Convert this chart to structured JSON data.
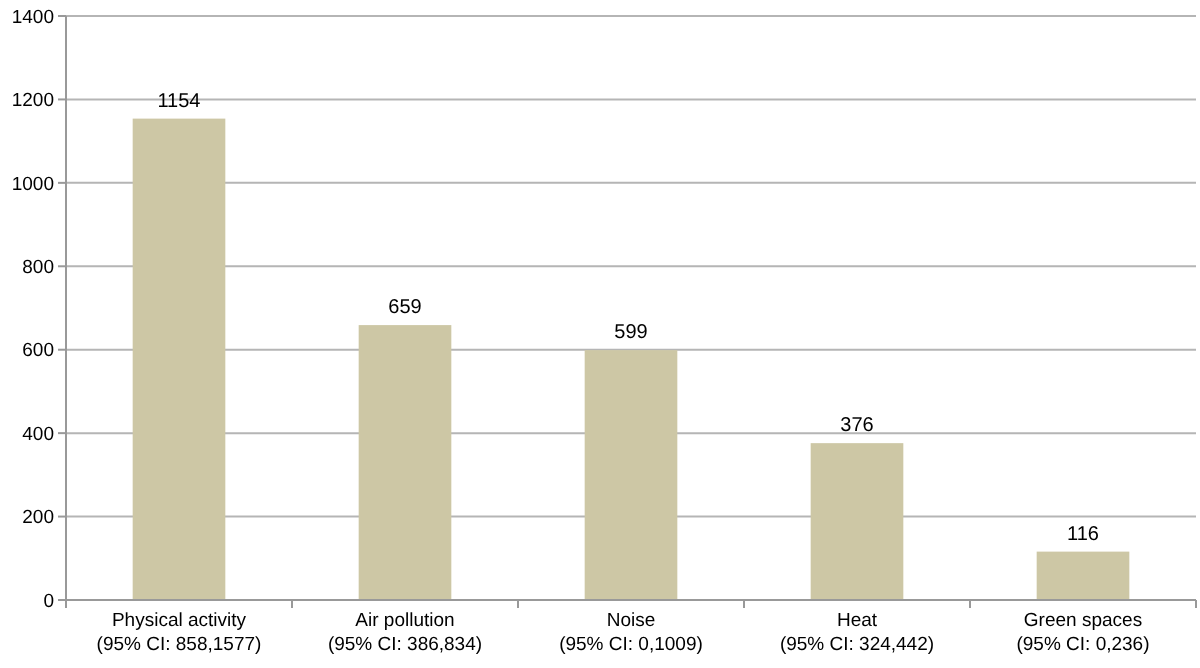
{
  "chart_data": {
    "type": "bar",
    "categories": [
      "Physical activity\n(95% CI: 858,1577)",
      "Air pollution\n(95% CI: 386,834)",
      "Noise\n(95% CI: 0,1009)",
      "Heat\n(95% CI: 324,442)",
      "Green spaces\n(95% CI: 0,236)"
    ],
    "values": [
      1154,
      659,
      599,
      376,
      116
    ],
    "color": "#cdc7a5",
    "ylim": [
      0,
      1400
    ],
    "yticks": [
      0,
      200,
      400,
      600,
      800,
      1000,
      1200,
      1400
    ],
    "grid": "y",
    "data_labels": true
  }
}
